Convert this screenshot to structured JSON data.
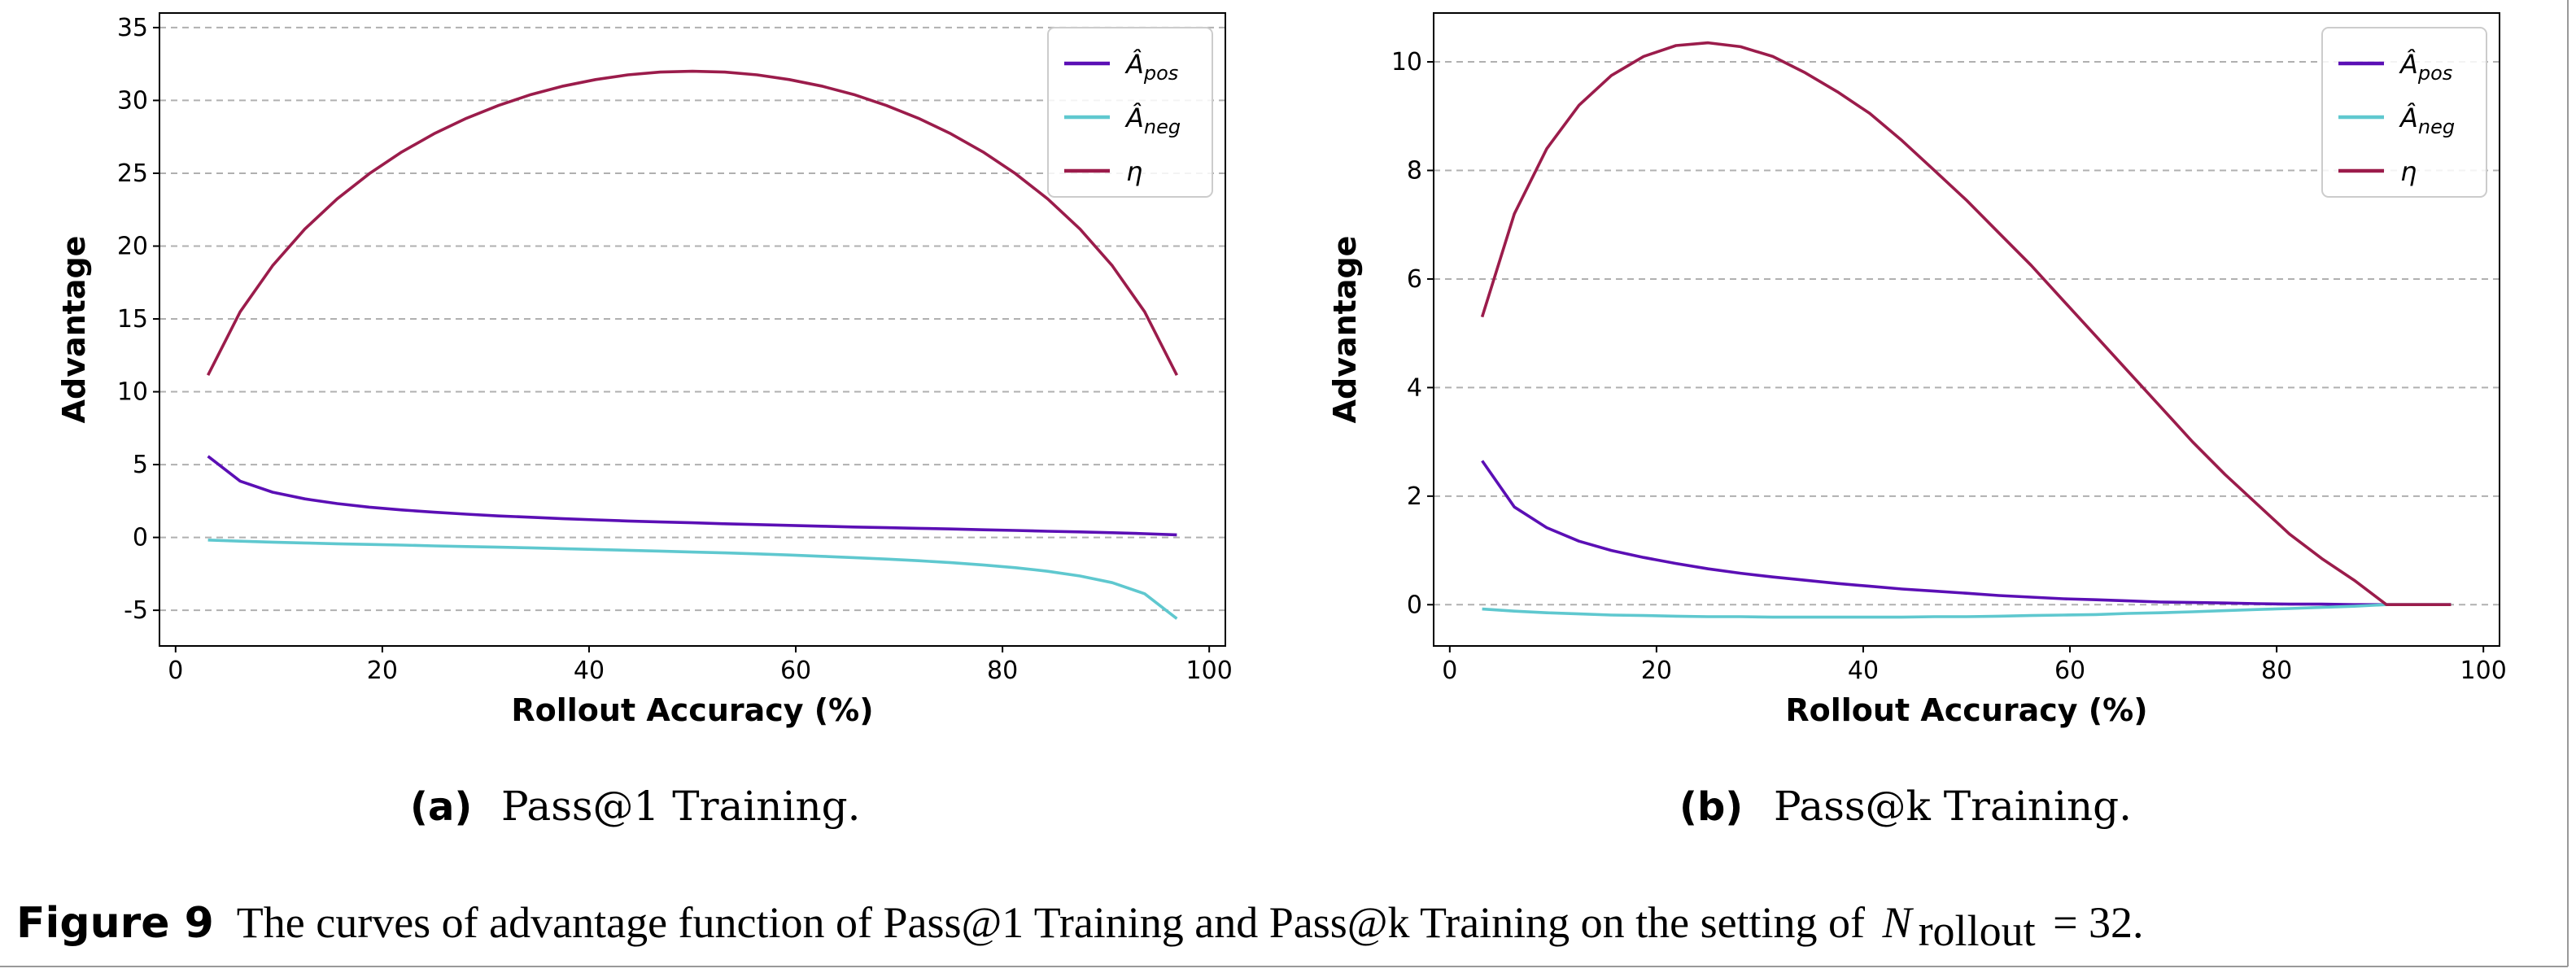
{
  "chart_data": [
    {
      "type": "line",
      "panel_tag": "(a)",
      "subcaption": "Pass@1 Training.",
      "xlabel": "Rollout Accuracy (%)",
      "ylabel": "Advantage",
      "xlim": [
        -1.56,
        101.56
      ],
      "ylim": [
        -7.45,
        36
      ],
      "xticks": [
        0,
        20,
        40,
        60,
        80,
        100
      ],
      "yticks": [
        -5,
        0,
        5,
        10,
        15,
        20,
        25,
        30,
        35
      ],
      "grid": "horizontal dashed",
      "legend_position": "top-right",
      "x": [
        3.125,
        6.25,
        9.375,
        12.5,
        15.625,
        18.75,
        21.875,
        25,
        28.125,
        31.25,
        34.375,
        37.5,
        40.625,
        43.75,
        46.875,
        50,
        53.125,
        56.25,
        59.375,
        62.5,
        65.625,
        68.75,
        71.875,
        75,
        78.125,
        81.25,
        84.375,
        87.5,
        90.625,
        93.75,
        96.875
      ],
      "series": [
        {
          "name_main": "Â",
          "name_sub": "pos",
          "color": "#5b0fb5",
          "values": [
            5.57,
            3.87,
            3.11,
            2.65,
            2.32,
            2.08,
            1.89,
            1.73,
            1.6,
            1.48,
            1.38,
            1.29,
            1.21,
            1.13,
            1.06,
            1.0,
            0.94,
            0.88,
            0.83,
            0.77,
            0.72,
            0.67,
            0.63,
            0.58,
            0.53,
            0.48,
            0.43,
            0.38,
            0.32,
            0.26,
            0.18
          ]
        },
        {
          "name_main": "Â",
          "name_sub": "neg",
          "color": "#5fc8cf",
          "values": [
            -0.18,
            -0.26,
            -0.32,
            -0.38,
            -0.43,
            -0.48,
            -0.53,
            -0.58,
            -0.63,
            -0.67,
            -0.72,
            -0.77,
            -0.83,
            -0.88,
            -0.94,
            -1.0,
            -1.06,
            -1.13,
            -1.21,
            -1.29,
            -1.38,
            -1.48,
            -1.6,
            -1.73,
            -1.89,
            -2.08,
            -2.32,
            -2.65,
            -3.11,
            -3.87,
            -5.57
          ]
        },
        {
          "name_main": "η",
          "name_sub": "",
          "color": "#9b1c4b",
          "values": [
            11.14,
            15.49,
            18.65,
            21.17,
            23.24,
            24.98,
            26.46,
            27.71,
            28.77,
            29.66,
            30.4,
            30.98,
            31.43,
            31.75,
            31.94,
            32.0,
            31.94,
            31.75,
            31.43,
            30.98,
            30.4,
            29.66,
            28.77,
            27.71,
            26.46,
            24.98,
            23.24,
            21.17,
            18.65,
            15.49,
            11.14
          ]
        }
      ]
    },
    {
      "type": "line",
      "panel_tag": "(b)",
      "subcaption": "Pass@k Training.",
      "xlabel": "Rollout Accuracy (%)",
      "ylabel": "Advantage",
      "xlim": [
        -1.56,
        101.56
      ],
      "ylim": [
        -0.76,
        10.9
      ],
      "xticks": [
        0,
        20,
        40,
        60,
        80,
        100
      ],
      "yticks": [
        0,
        2,
        4,
        6,
        8,
        10
      ],
      "grid": "horizontal dashed",
      "legend_position": "top-right",
      "x": [
        3.125,
        6.25,
        9.375,
        12.5,
        15.625,
        18.75,
        21.875,
        25,
        28.125,
        31.25,
        34.375,
        37.5,
        40.625,
        43.75,
        46.875,
        50,
        53.125,
        56.25,
        59.375,
        62.5,
        65.625,
        68.75,
        71.875,
        75,
        78.125,
        81.25,
        84.375,
        87.5,
        90.625,
        93.75,
        96.875
      ],
      "series": [
        {
          "name_main": "Â",
          "name_sub": "pos",
          "color": "#5b0fb5",
          "values": [
            2.65,
            1.8,
            1.42,
            1.17,
            1.0,
            0.87,
            0.76,
            0.66,
            0.58,
            0.51,
            0.45,
            0.39,
            0.34,
            0.29,
            0.25,
            0.21,
            0.17,
            0.14,
            0.11,
            0.09,
            0.07,
            0.05,
            0.04,
            0.03,
            0.02,
            0.01,
            0.01,
            0.0,
            0.0,
            0.0,
            0.0
          ]
        },
        {
          "name_main": "Â",
          "name_sub": "neg",
          "color": "#5fc8cf",
          "values": [
            -0.08,
            -0.12,
            -0.15,
            -0.17,
            -0.19,
            -0.2,
            -0.21,
            -0.22,
            -0.22,
            -0.23,
            -0.23,
            -0.23,
            -0.23,
            -0.23,
            -0.22,
            -0.22,
            -0.21,
            -0.2,
            -0.19,
            -0.18,
            -0.16,
            -0.15,
            -0.13,
            -0.11,
            -0.09,
            -0.07,
            -0.05,
            -0.03,
            0.0,
            0.0,
            0.0
          ]
        },
        {
          "name_main": "η",
          "name_sub": "",
          "color": "#9b1c4b",
          "values": [
            5.3,
            7.2,
            8.4,
            9.2,
            9.75,
            10.1,
            10.3,
            10.35,
            10.28,
            10.1,
            9.8,
            9.45,
            9.05,
            8.55,
            8.0,
            7.45,
            6.85,
            6.25,
            5.6,
            4.95,
            4.3,
            3.65,
            3.0,
            2.4,
            1.85,
            1.3,
            0.85,
            0.45,
            0.0,
            0.0,
            0.0
          ]
        }
      ]
    }
  ],
  "figure_caption": {
    "tag": "Figure 9",
    "text": "The curves of advantage function of Pass@1 Training and Pass@k Training on the setting of ",
    "math_var": "N",
    "math_sub": "rollout",
    "math_rest": " = 32."
  }
}
